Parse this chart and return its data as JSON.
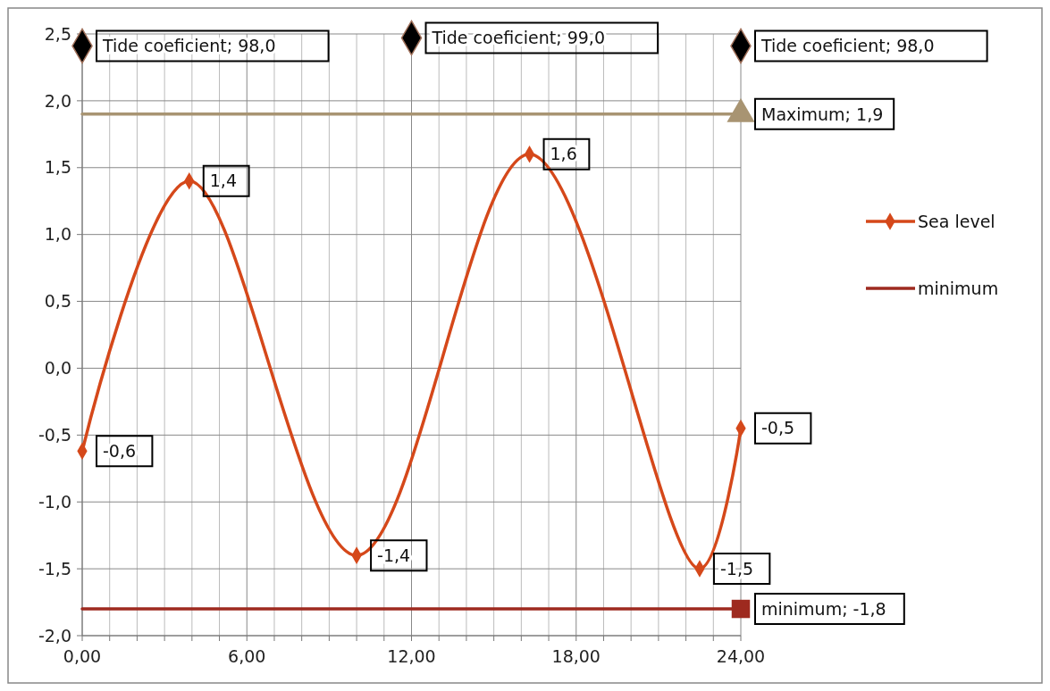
{
  "chart_data": {
    "type": "line",
    "x": [
      0,
      3.9,
      10,
      16.3,
      22.5,
      24
    ],
    "series": [
      {
        "name": "Sea level",
        "color": "#d5481a",
        "marker": "diamond",
        "values": [
          -0.62,
          1.4,
          -1.4,
          1.6,
          -1.5,
          -0.45
        ],
        "value_labels": [
          "-0,6",
          "1,4",
          "-1,4",
          "1,6",
          "-1,5",
          "-0,5"
        ]
      },
      {
        "name": "minimum",
        "color": "#9e2a1f",
        "marker": "none",
        "x": [
          0,
          24
        ],
        "values": [
          -1.8,
          -1.8
        ]
      },
      {
        "type": "line",
        "color": "#a89472",
        "marker": "none",
        "x": [
          0,
          24
        ],
        "values": [
          1.9,
          1.9
        ]
      },
      {
        "type": "scatter",
        "color": "#a89472",
        "marker": "triangle",
        "x": [
          24
        ],
        "values": [
          1.9
        ],
        "value_labels": [
          "Maximum; 1,9"
        ]
      },
      {
        "type": "scatter",
        "color": "#9e2a1f",
        "marker": "square",
        "x": [
          24
        ],
        "values": [
          -1.8
        ],
        "value_labels": [
          "minimum; -1,8"
        ]
      },
      {
        "type": "scatter",
        "color": "#000000",
        "marker": "diamond",
        "x": [
          0,
          12,
          24
        ],
        "values": [
          2.41,
          2.47,
          2.41
        ]
      }
    ],
    "annotations": [
      {
        "text": "Tide coeficient; 98,0",
        "x": 0,
        "y": 2.41
      },
      {
        "text": "Tide coeficient; 99,0",
        "x": 12,
        "y": 2.47
      },
      {
        "text": "Tide coeficient; 98,0",
        "x": 24,
        "y": 2.41
      }
    ],
    "xlim": [
      0,
      24
    ],
    "xticks": [
      {
        "value": 0,
        "label": "0,00"
      },
      {
        "value": 1,
        "label": null
      },
      {
        "value": 2,
        "label": null
      },
      {
        "value": 3,
        "label": null
      },
      {
        "value": 4,
        "label": null
      },
      {
        "value": 5,
        "label": null
      },
      {
        "value": 6,
        "label": "6,00"
      },
      {
        "value": 7,
        "label": null
      },
      {
        "value": 8,
        "label": null
      },
      {
        "value": 9,
        "label": null
      },
      {
        "value": 10,
        "label": null
      },
      {
        "value": 11,
        "label": null
      },
      {
        "value": 12,
        "label": "12,00"
      },
      {
        "value": 13,
        "label": null
      },
      {
        "value": 14,
        "label": null
      },
      {
        "value": 15,
        "label": null
      },
      {
        "value": 16,
        "label": null
      },
      {
        "value": 17,
        "label": null
      },
      {
        "value": 18,
        "label": "18,00"
      },
      {
        "value": 19,
        "label": null
      },
      {
        "value": 20,
        "label": null
      },
      {
        "value": 21,
        "label": null
      },
      {
        "value": 22,
        "label": null
      },
      {
        "value": 23,
        "label": null
      },
      {
        "value": 24,
        "label": "24,00"
      }
    ],
    "ylim": [
      -2,
      2.5
    ],
    "yticks": [
      {
        "value": -2,
        "label": "-2,0"
      },
      {
        "value": -1.5,
        "label": "-1,5"
      },
      {
        "value": -1,
        "label": "-1,0"
      },
      {
        "value": -0.5,
        "label": "-0,5"
      },
      {
        "value": 0,
        "label": "0,0"
      },
      {
        "value": 0.5,
        "label": "0,5"
      },
      {
        "value": 1,
        "label": "1,0"
      },
      {
        "value": 1.5,
        "label": "1,5"
      },
      {
        "value": 2,
        "label": "2,0"
      },
      {
        "value": 2.5,
        "label": "2,5"
      }
    ],
    "grid": true,
    "legend": "right"
  }
}
